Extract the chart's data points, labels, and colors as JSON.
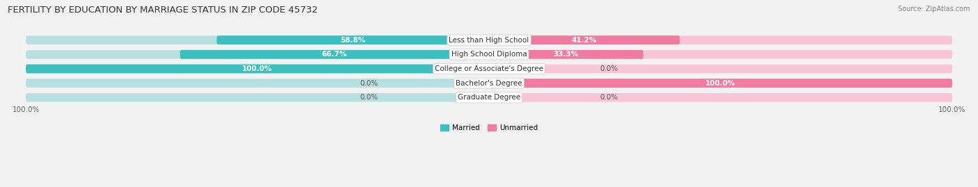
{
  "title": "FERTILITY BY EDUCATION BY MARRIAGE STATUS IN ZIP CODE 45732",
  "source": "Source: ZipAtlas.com",
  "categories": [
    "Less than High School",
    "High School Diploma",
    "College or Associate's Degree",
    "Bachelor's Degree",
    "Graduate Degree"
  ],
  "married": [
    58.8,
    66.7,
    100.0,
    0.0,
    0.0
  ],
  "unmarried": [
    41.2,
    33.3,
    0.0,
    100.0,
    0.0
  ],
  "married_color": "#3bbfbf",
  "unmarried_color": "#f07aa0",
  "married_light": "#b8e0e0",
  "unmarried_light": "#f9c6d8",
  "bar_height": 0.62,
  "background_color": "#f2f2f2",
  "row_bg_color": "#ffffff",
  "title_fontsize": 9.5,
  "label_fontsize": 7.5,
  "tick_fontsize": 7.5,
  "source_fontsize": 7
}
